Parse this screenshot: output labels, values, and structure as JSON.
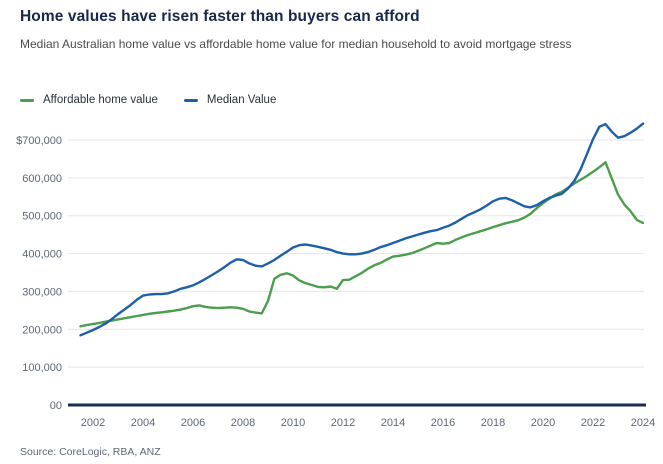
{
  "header": {
    "title": "Home values have risen faster than buyers can afford",
    "subtitle": "Median Australian home value vs affordable home value for median household to avoid mortgage stress"
  },
  "legend": [
    {
      "label": "Affordable home value",
      "color": "#4A9E4C"
    },
    {
      "label": "Median Value",
      "color": "#1E5FA9"
    }
  ],
  "source": "Source: CoreLogic, RBA, ANZ",
  "colors": {
    "title": "#16294B",
    "subtitle": "#4B4B4B",
    "gridline": "#E5E5E5",
    "axis_line": "#1B2C4E",
    "tick_label": "#5C6876",
    "background": "#FFFFFF"
  },
  "chart_data": {
    "type": "line",
    "title": "Home values have risen faster than buyers can afford",
    "subtitle": "Median Australian home value vs affordable home value for median household to avoid mortgage stress",
    "xlabel": "",
    "ylabel": "",
    "units": "AUD",
    "grid": "horizontal",
    "legend_position": "top-left",
    "xlim": [
      2001.4,
      2024.3
    ],
    "ylim": [
      0,
      760000
    ],
    "xticks": [
      2002,
      2004,
      2006,
      2008,
      2010,
      2012,
      2014,
      2016,
      2018,
      2020,
      2022,
      2024
    ],
    "yticks": [
      {
        "label": "$700,000",
        "value": 700000
      },
      {
        "label": "600,000",
        "value": 600000
      },
      {
        "label": "500,000",
        "value": 500000
      },
      {
        "label": "400,000",
        "value": 400000
      },
      {
        "label": "300,000",
        "value": 300000
      },
      {
        "label": "200,000",
        "value": 200000
      },
      {
        "label": "100,000",
        "value": 100000
      },
      {
        "label": "00",
        "value": 0
      }
    ],
    "x": [
      2001.5,
      2001.75,
      2002.0,
      2002.25,
      2002.5,
      2002.75,
      2003.0,
      2003.25,
      2003.5,
      2003.75,
      2004.0,
      2004.25,
      2004.5,
      2004.75,
      2005.0,
      2005.25,
      2005.5,
      2005.75,
      2006.0,
      2006.25,
      2006.5,
      2006.75,
      2007.0,
      2007.25,
      2007.5,
      2007.75,
      2008.0,
      2008.25,
      2008.5,
      2008.75,
      2009.0,
      2009.25,
      2009.5,
      2009.75,
      2010.0,
      2010.25,
      2010.5,
      2010.75,
      2011.0,
      2011.25,
      2011.5,
      2011.75,
      2012.0,
      2012.25,
      2012.5,
      2012.75,
      2013.0,
      2013.25,
      2013.5,
      2013.75,
      2014.0,
      2014.25,
      2014.5,
      2014.75,
      2015.0,
      2015.25,
      2015.5,
      2015.75,
      2016.0,
      2016.25,
      2016.5,
      2016.75,
      2017.0,
      2017.25,
      2017.5,
      2017.75,
      2018.0,
      2018.25,
      2018.5,
      2018.75,
      2019.0,
      2019.25,
      2019.5,
      2019.75,
      2020.0,
      2020.25,
      2020.5,
      2020.75,
      2021.0,
      2021.25,
      2021.5,
      2021.75,
      2022.0,
      2022.25,
      2022.5,
      2022.75,
      2023.0,
      2023.25,
      2023.5,
      2023.75,
      2024.0
    ],
    "series": [
      {
        "name": "Affordable home value",
        "color": "#4A9E4C",
        "values": [
          208000,
          211000,
          214000,
          217000,
          220000,
          223000,
          226000,
          229000,
          232000,
          235000,
          238000,
          241000,
          243000,
          245000,
          247000,
          249000,
          252000,
          256000,
          261000,
          263000,
          259000,
          257000,
          256000,
          257000,
          258000,
          257000,
          254000,
          247000,
          244000,
          242000,
          275000,
          333000,
          344000,
          348000,
          342000,
          329000,
          322000,
          317000,
          312000,
          311000,
          313000,
          307000,
          330000,
          331000,
          340000,
          349000,
          360000,
          369000,
          375000,
          384000,
          392000,
          394000,
          397000,
          401000,
          407000,
          414000,
          421000,
          428000,
          426000,
          428000,
          436000,
          443000,
          449000,
          454000,
          459000,
          464000,
          470000,
          475000,
          480000,
          484000,
          488000,
          495000,
          505000,
          520000,
          533000,
          545000,
          556000,
          563000,
          574000,
          585000,
          595000,
          605000,
          616000,
          628000,
          641000,
          598000,
          556000,
          530000,
          512000,
          489000,
          481000
        ]
      },
      {
        "name": "Median Value",
        "color": "#1E5FA9",
        "values": [
          184000,
          191000,
          198000,
          206000,
          215000,
          227000,
          240000,
          252000,
          264000,
          278000,
          289000,
          292000,
          293000,
          293000,
          295000,
          300000,
          307000,
          311000,
          316000,
          324000,
          333000,
          343000,
          353000,
          364000,
          376000,
          385000,
          383000,
          374000,
          368000,
          366000,
          374000,
          383000,
          394000,
          405000,
          416000,
          422000,
          424000,
          421000,
          418000,
          414000,
          410000,
          404000,
          400000,
          398000,
          398000,
          400000,
          404000,
          410000,
          417000,
          422000,
          428000,
          434000,
          440000,
          445000,
          450000,
          455000,
          459000,
          462000,
          468000,
          474000,
          482000,
          492000,
          502000,
          509000,
          517000,
          527000,
          538000,
          545000,
          547000,
          541000,
          533000,
          525000,
          522000,
          528000,
          538000,
          547000,
          553000,
          558000,
          572000,
          592000,
          622000,
          662000,
          702000,
          735000,
          742000,
          722000,
          706000,
          710000,
          719000,
          730000,
          743000
        ]
      }
    ]
  }
}
